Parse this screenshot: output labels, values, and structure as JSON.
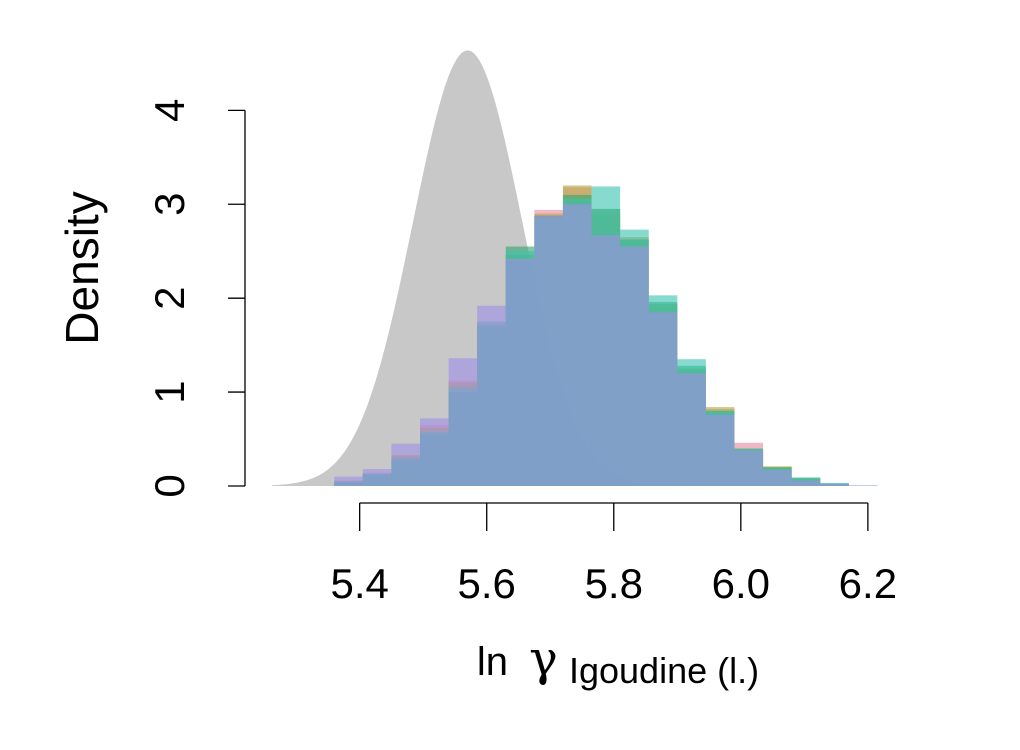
{
  "chart_data": {
    "type": "histogram",
    "xlabel": {
      "prefix": "ln",
      "symbol": "γ",
      "subscript": "Igoudine (l.)"
    },
    "ylabel": "Density",
    "xlim": [
      5.262,
      6.26
    ],
    "ylim": [
      0,
      4.6
    ],
    "x_ticks": [
      5.4,
      5.6,
      5.8,
      6.0,
      6.2
    ],
    "x_tick_labels": [
      "5.4",
      "5.6",
      "5.8",
      "6.0",
      "6.2"
    ],
    "y_ticks": [
      0,
      1,
      2,
      3,
      4
    ],
    "y_tick_labels": [
      "0",
      "1",
      "2",
      "3",
      "4"
    ],
    "grid": false,
    "prior": {
      "type": "density-curve",
      "mean": 5.57,
      "sd": 0.086,
      "color": "#c8c8c8"
    },
    "bin_edges": [
      5.36,
      5.405,
      5.45,
      5.495,
      5.54,
      5.585,
      5.63,
      5.675,
      5.72,
      5.765,
      5.81,
      5.855,
      5.9,
      5.945,
      5.99,
      6.035,
      6.08,
      6.125,
      6.17,
      6.215
    ],
    "series": [
      {
        "color": "#e98aa0",
        "values": [
          0.06,
          0.14,
          0.32,
          0.65,
          1.12,
          1.75,
          2.4,
          2.94,
          3.18,
          2.9,
          2.63,
          1.9,
          1.22,
          0.82,
          0.46,
          0.2,
          0.07,
          0.02,
          0.005
        ]
      },
      {
        "color": "#b1a73e",
        "values": [
          0.05,
          0.13,
          0.33,
          0.62,
          1.1,
          1.72,
          2.46,
          2.9,
          3.2,
          2.95,
          2.65,
          1.94,
          1.25,
          0.84,
          0.4,
          0.21,
          0.08,
          0.02,
          0.005
        ]
      },
      {
        "color": "#34a86f",
        "values": [
          0.04,
          0.12,
          0.28,
          0.55,
          1.0,
          1.7,
          2.55,
          2.88,
          3.1,
          2.95,
          2.62,
          1.96,
          1.28,
          0.8,
          0.39,
          0.2,
          0.09,
          0.03,
          0.005
        ]
      },
      {
        "color": "#3ec4b0",
        "values": [
          0.05,
          0.13,
          0.3,
          0.58,
          1.05,
          1.75,
          2.5,
          2.85,
          3.06,
          3.19,
          2.73,
          2.03,
          1.35,
          0.8,
          0.4,
          0.19,
          0.09,
          0.03,
          0.005
        ]
      },
      {
        "color": "#9e8fe6",
        "values": [
          0.1,
          0.18,
          0.45,
          0.72,
          1.36,
          1.92,
          2.42,
          2.88,
          3.0,
          2.67,
          2.55,
          1.85,
          1.2,
          0.76,
          0.38,
          0.17,
          0.06,
          0.02,
          0.005
        ]
      }
    ]
  }
}
